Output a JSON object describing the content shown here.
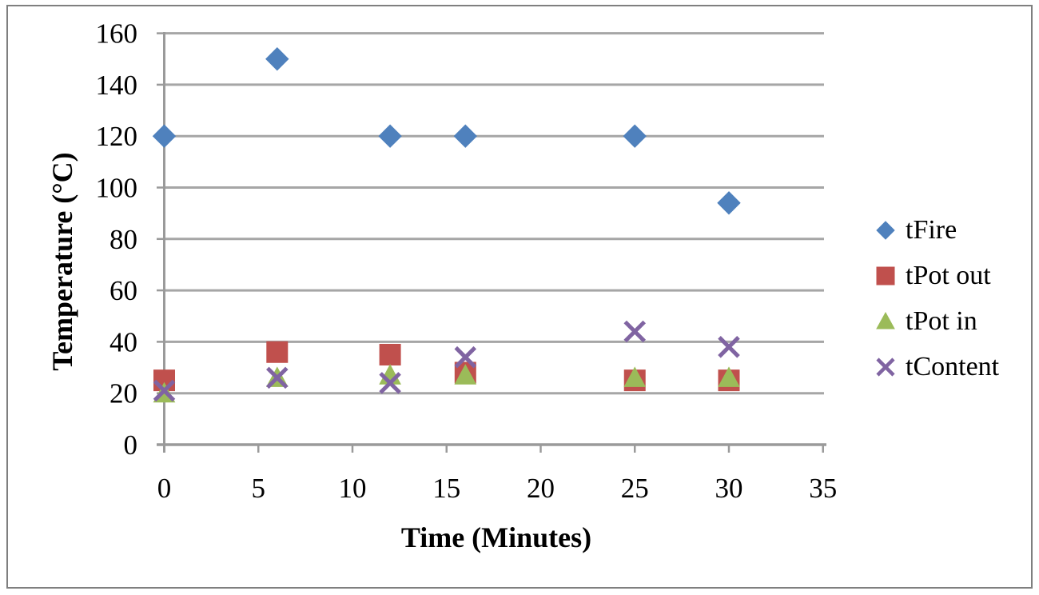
{
  "chart_data": {
    "type": "scatter",
    "title": "",
    "xlabel": "Time (Minutes)",
    "ylabel": "Temperature (°C)",
    "xlim": [
      0,
      35
    ],
    "ylim": [
      0,
      160
    ],
    "xticks": [
      0,
      5,
      10,
      15,
      20,
      25,
      30,
      35
    ],
    "yticks": [
      0,
      20,
      40,
      60,
      80,
      100,
      120,
      140,
      160
    ],
    "grid": "horizontal",
    "grid_color": "#a6a6a6",
    "axis_color": "#9a9a9a",
    "frame_border_color": "#7f7f7f",
    "legend_position": "right",
    "series": [
      {
        "name": "tFire",
        "marker": "diamond",
        "color": "#4f81bd",
        "points": [
          [
            0,
            120
          ],
          [
            6,
            150
          ],
          [
            12,
            120
          ],
          [
            16,
            120
          ],
          [
            25,
            120
          ],
          [
            30,
            94
          ]
        ]
      },
      {
        "name": "tPot out",
        "marker": "square",
        "color": "#c0504d",
        "points": [
          [
            0,
            25
          ],
          [
            6,
            36
          ],
          [
            12,
            35
          ],
          [
            16,
            28
          ],
          [
            25,
            25
          ],
          [
            30,
            25
          ]
        ]
      },
      {
        "name": "tPot in",
        "marker": "triangle",
        "color": "#9bbb59",
        "points": [
          [
            0,
            20
          ],
          [
            6,
            26
          ],
          [
            12,
            27
          ],
          [
            16,
            27
          ],
          [
            25,
            26
          ],
          [
            30,
            26
          ]
        ]
      },
      {
        "name": "tContent",
        "marker": "x",
        "color": "#8064a2",
        "points": [
          [
            0,
            21
          ],
          [
            6,
            26
          ],
          [
            12,
            24
          ],
          [
            16,
            34
          ],
          [
            25,
            44
          ],
          [
            30,
            38
          ]
        ]
      }
    ]
  }
}
